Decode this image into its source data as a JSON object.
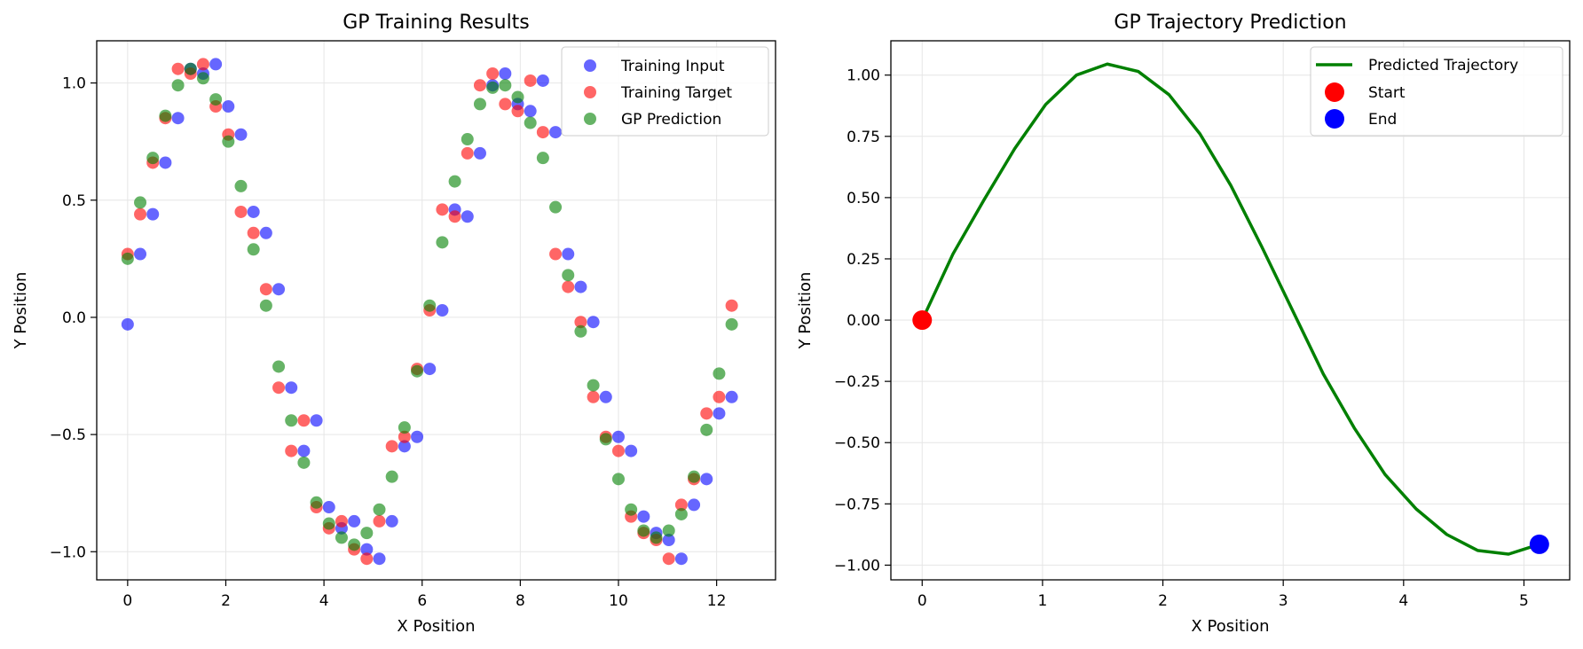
{
  "chart_data": [
    {
      "type": "scatter",
      "title": "GP Training Results",
      "xlabel": "X Position",
      "ylabel": "Y Position",
      "xlim": [
        -0.63,
        13.2
      ],
      "ylim": [
        -1.12,
        1.18
      ],
      "xticks": [
        0,
        2,
        4,
        6,
        8,
        10,
        12
      ],
      "xtick_labels": [
        "0",
        "2",
        "4",
        "6",
        "8",
        "10",
        "12"
      ],
      "yticks": [
        -1.0,
        -0.5,
        0.0,
        0.5,
        1.0
      ],
      "ytick_labels": [
        "−1.0",
        "−0.5",
        "0.0",
        "0.5",
        "1.0"
      ],
      "grid": true,
      "legend_position": "top-right",
      "x_step": 0.2564,
      "series": [
        {
          "name": "Training Input",
          "color": "#0000ff",
          "values": [
            -0.03,
            0.27,
            0.44,
            0.66,
            0.85,
            1.06,
            1.04,
            1.08,
            0.9,
            0.78,
            0.45,
            0.36,
            0.12,
            -0.3,
            -0.57,
            -0.44,
            -0.81,
            -0.9,
            -0.87,
            -0.99,
            -1.03,
            -0.87,
            -0.55,
            -0.51,
            -0.22,
            0.03,
            0.46,
            0.43,
            0.7,
            0.99,
            1.04,
            0.91,
            0.88,
            1.01,
            0.79,
            0.27,
            0.13,
            -0.02,
            -0.34,
            -0.51,
            -0.57,
            -0.85,
            -0.92,
            -0.95,
            -1.03,
            -0.8,
            -0.69,
            -0.41,
            -0.34
          ]
        },
        {
          "name": "Training Target",
          "color": "#ff0000",
          "values": [
            0.27,
            0.44,
            0.66,
            0.85,
            1.06,
            1.04,
            1.08,
            0.9,
            0.78,
            0.45,
            0.36,
            0.12,
            -0.3,
            -0.57,
            -0.44,
            -0.81,
            -0.9,
            -0.87,
            -0.99,
            -1.03,
            -0.87,
            -0.55,
            -0.51,
            -0.22,
            0.03,
            0.46,
            0.43,
            0.7,
            0.99,
            1.04,
            0.91,
            0.88,
            1.01,
            0.79,
            0.27,
            0.13,
            -0.02,
            -0.34,
            -0.51,
            -0.57,
            -0.85,
            -0.92,
            -0.95,
            -1.03,
            -0.8,
            -0.69,
            -0.41,
            -0.34,
            0.05
          ]
        },
        {
          "name": "GP Prediction",
          "color": "#008000",
          "values": [
            0.25,
            0.49,
            0.68,
            0.86,
            0.99,
            1.06,
            1.02,
            0.93,
            0.75,
            0.56,
            0.29,
            0.05,
            -0.21,
            -0.44,
            -0.62,
            -0.79,
            -0.88,
            -0.94,
            -0.97,
            -0.92,
            -0.82,
            -0.68,
            -0.47,
            -0.23,
            0.05,
            0.32,
            0.58,
            0.76,
            0.91,
            0.98,
            0.99,
            0.94,
            0.83,
            0.68,
            0.47,
            0.18,
            -0.06,
            -0.29,
            -0.52,
            -0.69,
            -0.82,
            -0.91,
            -0.94,
            -0.91,
            -0.84,
            -0.68,
            -0.48,
            -0.24,
            -0.03
          ]
        }
      ]
    },
    {
      "type": "line",
      "title": "GP Trajectory Prediction",
      "xlabel": "X Position",
      "ylabel": "Y Position",
      "xlim": [
        -0.26,
        5.38
      ],
      "ylim": [
        -1.06,
        1.14
      ],
      "xticks": [
        0,
        1,
        2,
        3,
        4,
        5
      ],
      "xtick_labels": [
        "0",
        "1",
        "2",
        "3",
        "4",
        "5"
      ],
      "yticks": [
        -1.0,
        -0.75,
        -0.5,
        -0.25,
        0.0,
        0.25,
        0.5,
        0.75,
        1.0
      ],
      "ytick_labels": [
        "−1.00",
        "−0.75",
        "−0.50",
        "−0.25",
        "0.00",
        "0.25",
        "0.50",
        "0.75",
        "1.00"
      ],
      "grid": true,
      "legend_position": "top-right",
      "series": [
        {
          "name": "Predicted Trajectory",
          "color": "#008000",
          "x": [
            0,
            0.256,
            0.513,
            0.769,
            1.026,
            1.282,
            1.538,
            1.795,
            2.051,
            2.308,
            2.564,
            2.821,
            3.077,
            3.333,
            3.59,
            3.846,
            4.103,
            4.359,
            4.615,
            4.872,
            5.128
          ],
          "y": [
            0.0,
            0.27,
            0.49,
            0.7,
            0.88,
            1.0,
            1.045,
            1.015,
            0.92,
            0.76,
            0.55,
            0.3,
            0.04,
            -0.22,
            -0.44,
            -0.63,
            -0.77,
            -0.875,
            -0.94,
            -0.955,
            -0.915
          ]
        }
      ],
      "markers": [
        {
          "name": "Start",
          "color": "#ff0000",
          "x": 0,
          "y": 0.0
        },
        {
          "name": "End",
          "color": "#0000ff",
          "x": 5.128,
          "y": -0.915
        }
      ]
    }
  ]
}
